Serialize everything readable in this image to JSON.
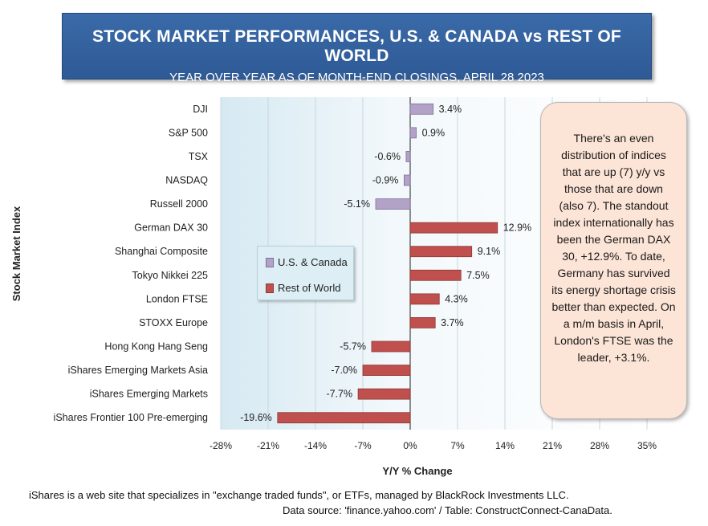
{
  "header": {
    "title": "STOCK MARKET PERFORMANCES, U.S. & CANADA vs REST OF WORLD",
    "subtitle": "YEAR OVER YEAR AS OF MONTH-END CLOSINGS, APRIL 28 2023"
  },
  "chart_data": {
    "type": "bar",
    "orientation": "horizontal",
    "xlabel": "Y/Y % Change",
    "ylabel": "Stock Market Index",
    "xlim": [
      -28,
      35
    ],
    "xticks": [
      -28,
      -21,
      -14,
      -7,
      0,
      7,
      14,
      21,
      28,
      35
    ],
    "xtick_labels": [
      "-28%",
      "-21%",
      "-14%",
      "-7%",
      "0%",
      "7%",
      "14%",
      "21%",
      "28%",
      "35%"
    ],
    "grid": true,
    "legend_position": "center-left",
    "categories": [
      "DJI",
      "S&P 500",
      "TSX",
      "NASDAQ",
      "Russell  2000",
      "German DAX 30",
      "Shanghai Composite",
      "Tokyo Nikkei 225",
      "London FTSE",
      "STOXX Europe",
      "Hong Kong Hang Seng",
      "iShares Emerging Markets Asia",
      "iShares Emerging Markets ",
      "iShares Frontier 100 Pre-emerging"
    ],
    "values": [
      3.4,
      0.9,
      -0.6,
      -0.9,
      -5.1,
      12.9,
      9.1,
      7.5,
      4.3,
      3.7,
      -5.7,
      -7.0,
      -7.7,
      -19.6
    ],
    "value_labels": [
      "3.4%",
      "0.9%",
      "-0.6%",
      "-0.9%",
      "-5.1%",
      "12.9%",
      "9.1%",
      "7.5%",
      "4.3%",
      "3.7%",
      "-5.7%",
      "-7.0%",
      "-7.7%",
      "-19.6%"
    ],
    "groups": [
      "us",
      "us",
      "us",
      "us",
      "us",
      "row",
      "row",
      "row",
      "row",
      "row",
      "row",
      "row",
      "row",
      "row"
    ],
    "series": [
      {
        "name": "U.S. & Canada",
        "key": "us",
        "color": "#b3a2c7"
      },
      {
        "name": "Rest of World",
        "key": "row",
        "color": "#c0504d"
      }
    ]
  },
  "annotation": {
    "text": "There's an even distribution of indices that are up (7) y/y vs those that are down (also 7). The standout index internationally has been the German DAX 30, +12.9%. To date, Germany has survived its energy shortage crisis better than expected. On a m/m basis in April, London's FTSE was the leader, +3.1%."
  },
  "footer": {
    "note": "iShares is a web site that specializes in \"exchange traded funds\", or ETFs, managed by BlackRock Investments LLC.",
    "source": "Data source: 'finance.yahoo.com' / Table: ConstructConnect-CanaData."
  }
}
